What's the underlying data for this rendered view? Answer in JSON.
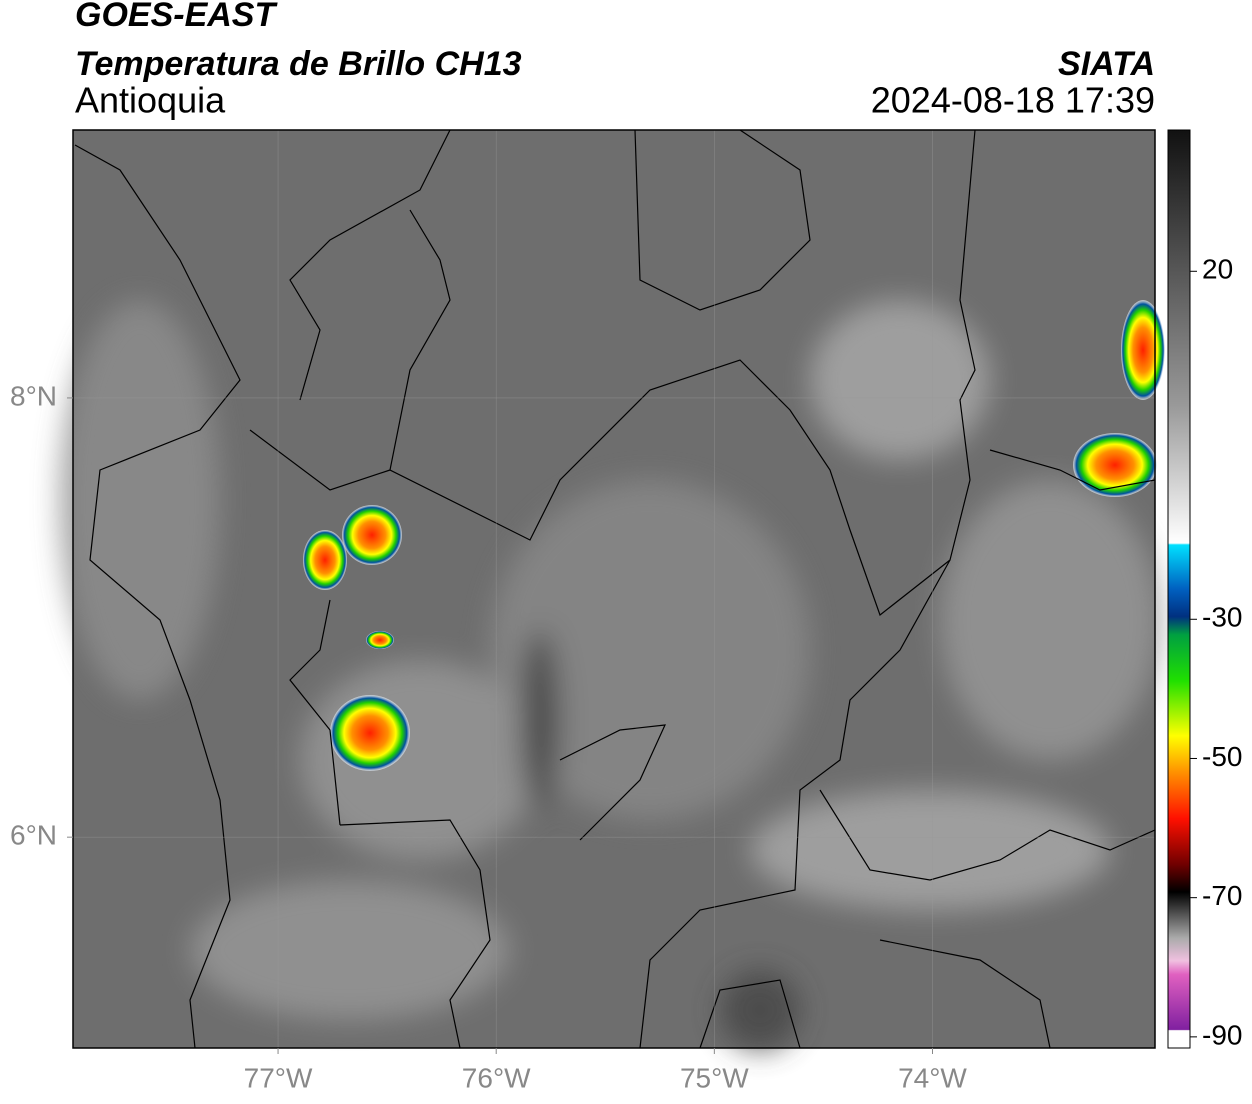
{
  "chart_data": {
    "type": "map",
    "title": "GOES-EAST",
    "subtitle": "Temperatura de Brillo CH13",
    "region": "Antioquia",
    "source": "SIATA",
    "datetime": "2024-08-18 17:39",
    "xlim": [
      -77.94,
      -72.98
    ],
    "xticks": [
      {
        "value": -77,
        "label": "77°W"
      },
      {
        "value": -76,
        "label": "76°W"
      },
      {
        "value": -75,
        "label": "75°W"
      },
      {
        "value": -74,
        "label": "74°W"
      }
    ],
    "ylim": [
      5.04,
      9.22
    ],
    "yticks": [
      {
        "value": 6,
        "label": "6°N"
      },
      {
        "value": 8,
        "label": "8°N"
      }
    ],
    "grid": true,
    "colorbar": {
      "lim": [
        -91.6,
        40.3
      ],
      "ticks": [
        20,
        -30,
        -50,
        -70,
        -90
      ]
    }
  }
}
